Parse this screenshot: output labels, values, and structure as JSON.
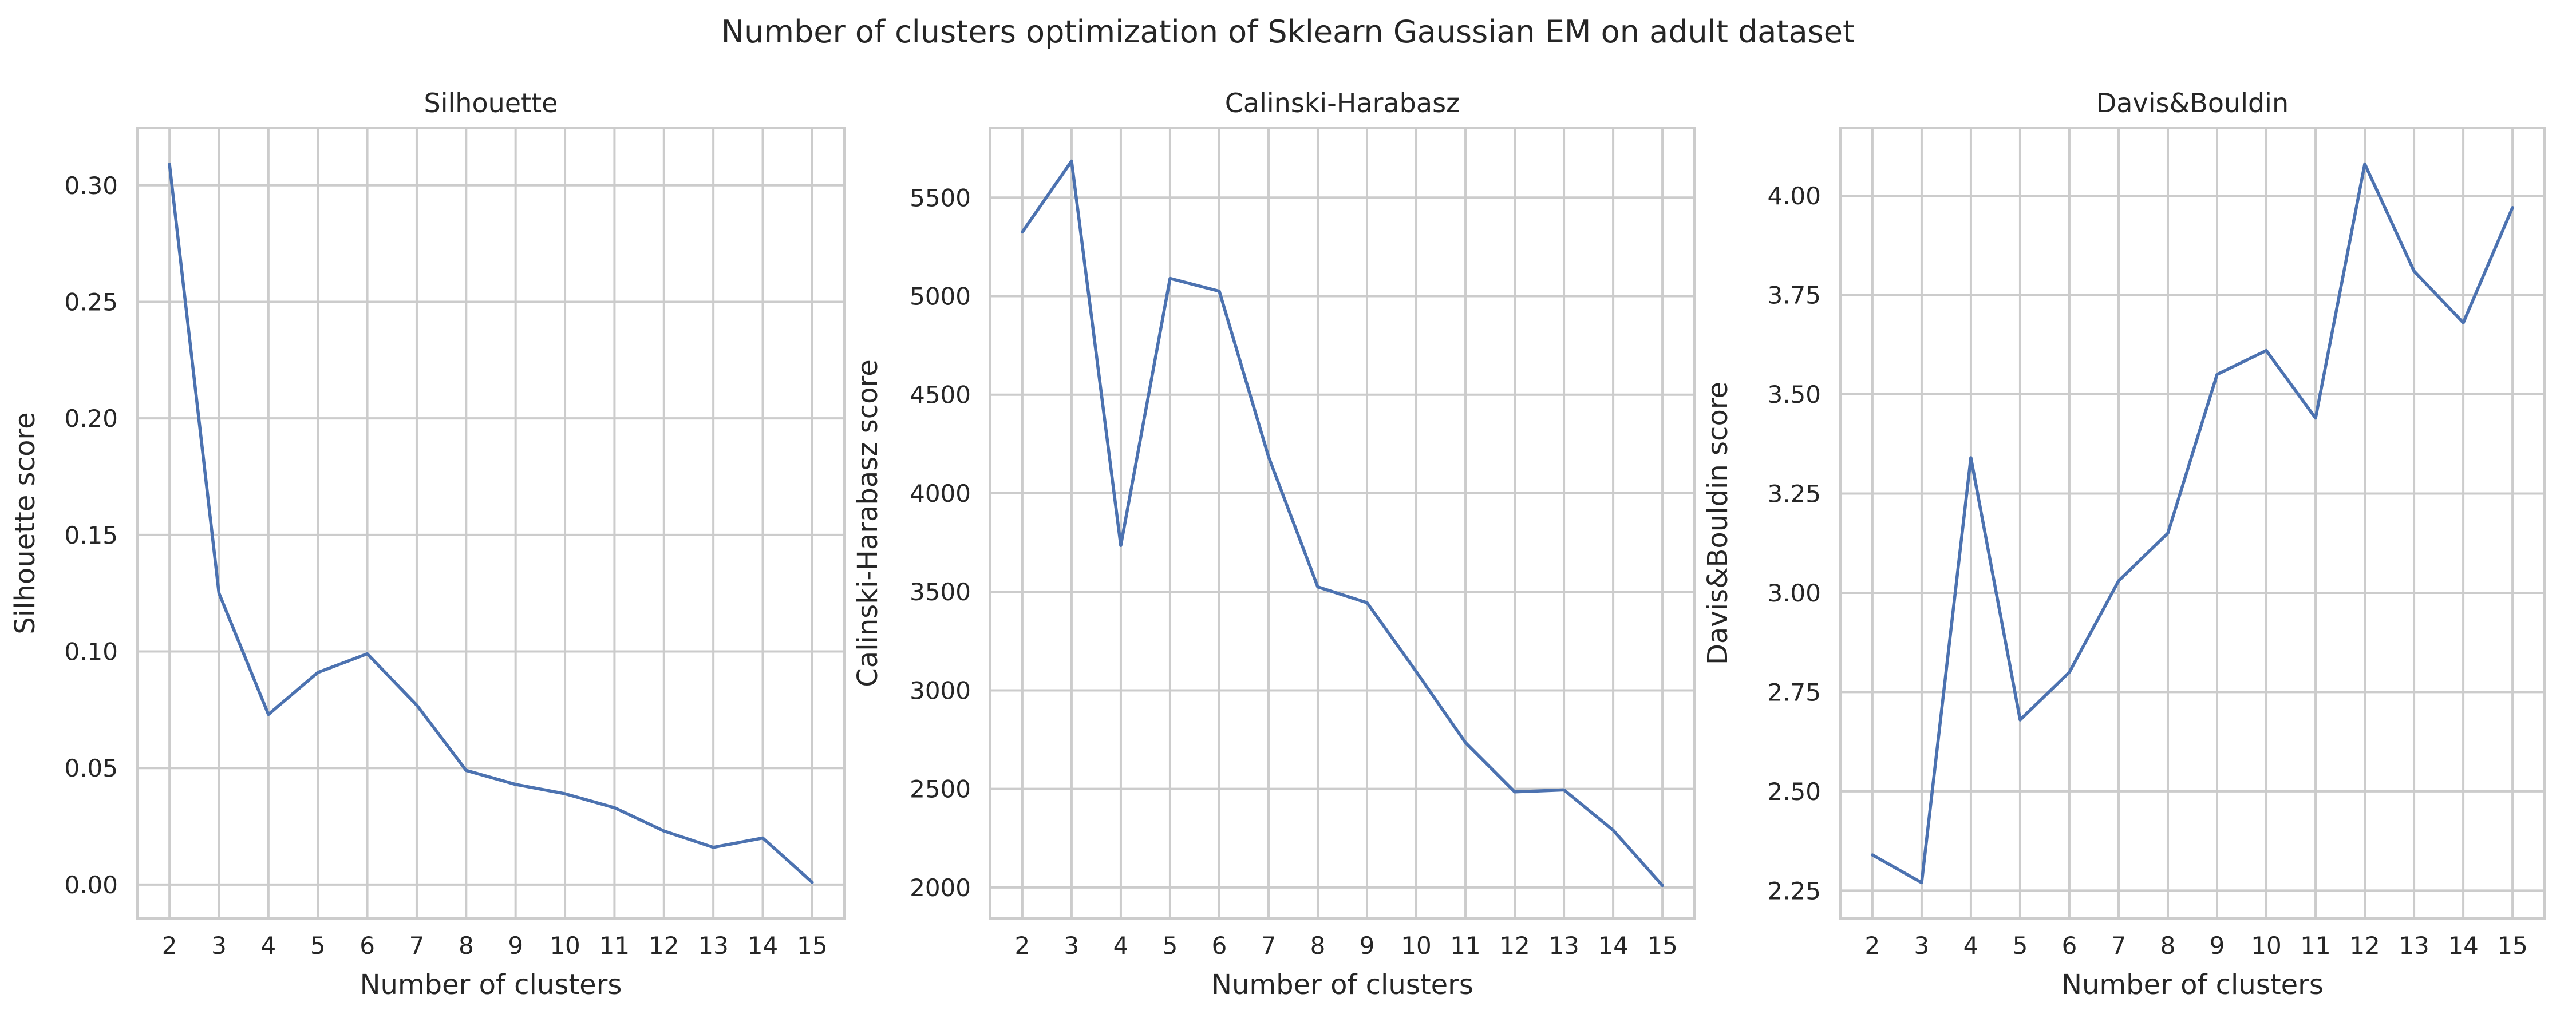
{
  "figure": {
    "suptitle": "Number of clusters optimization of Sklearn Gaussian EM on adult dataset"
  },
  "colors": {
    "line": "#4c72b0",
    "grid": "#cccccc",
    "spine": "#cccccc",
    "text": "#262626",
    "background": "#ffffff"
  },
  "chart_data": [
    {
      "type": "line",
      "title": "Silhouette",
      "xlabel": "Number of clusters",
      "ylabel": "Silhouette score",
      "x": [
        2,
        3,
        4,
        5,
        6,
        7,
        8,
        9,
        10,
        11,
        12,
        13,
        14,
        15
      ],
      "y": [
        0.309,
        0.125,
        0.073,
        0.091,
        0.099,
        0.077,
        0.049,
        0.043,
        0.039,
        0.033,
        0.023,
        0.016,
        0.02,
        0.001
      ],
      "xlim": [
        1.35,
        15.65
      ],
      "ylim": [
        -0.0145,
        0.3245
      ],
      "yticks": [
        0.0,
        0.05,
        0.1,
        0.15,
        0.2,
        0.25,
        0.3
      ],
      "ytick_labels": [
        "0.00",
        "0.05",
        "0.10",
        "0.15",
        "0.20",
        "0.25",
        "0.30"
      ],
      "grid": true
    },
    {
      "type": "line",
      "title": "Calinski-Harabasz",
      "xlabel": "Number of clusters",
      "ylabel": "Calinski-Harabasz score",
      "x": [
        2,
        3,
        4,
        5,
        6,
        7,
        8,
        9,
        10,
        11,
        12,
        13,
        14,
        15
      ],
      "y": [
        5325,
        5685,
        3735,
        5090,
        5025,
        4185,
        3525,
        3445,
        3095,
        2735,
        2485,
        2495,
        2290,
        2010
      ],
      "xlim": [
        1.35,
        15.65
      ],
      "ylim": [
        1843,
        5852
      ],
      "yticks": [
        2000,
        2500,
        3000,
        3500,
        4000,
        4500,
        5000,
        5500
      ],
      "ytick_labels": [
        "2000",
        "2500",
        "3000",
        "3500",
        "4000",
        "4500",
        "5000",
        "5500"
      ],
      "grid": true
    },
    {
      "type": "line",
      "title": "Davis&Bouldin",
      "xlabel": "Number of clusters",
      "ylabel": "Davis&Bouldin score",
      "x": [
        2,
        3,
        4,
        5,
        6,
        7,
        8,
        9,
        10,
        11,
        12,
        13,
        14,
        15
      ],
      "y": [
        2.34,
        2.27,
        3.34,
        2.68,
        2.8,
        3.03,
        3.15,
        3.55,
        3.61,
        3.44,
        4.08,
        3.81,
        3.68,
        3.97
      ],
      "xlim": [
        1.35,
        15.65
      ],
      "ylim": [
        2.18,
        4.17
      ],
      "yticks": [
        2.25,
        2.5,
        2.75,
        3.0,
        3.25,
        3.5,
        3.75,
        4.0
      ],
      "ytick_labels": [
        "2.25",
        "2.50",
        "2.75",
        "3.00",
        "3.25",
        "3.50",
        "3.75",
        "4.00"
      ],
      "grid": true
    }
  ]
}
